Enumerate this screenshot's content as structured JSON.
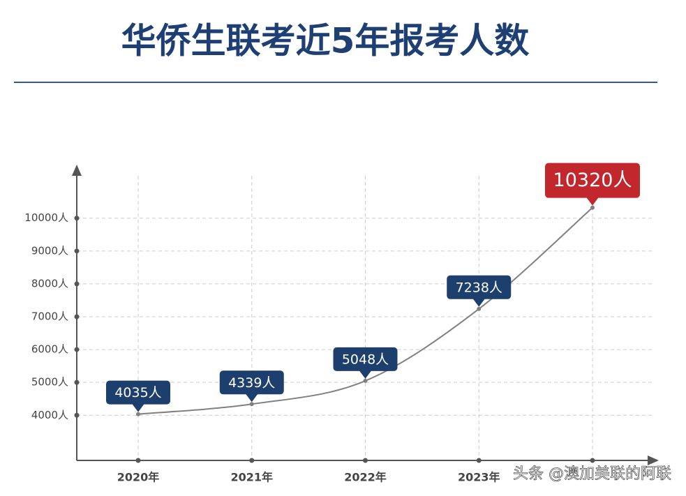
{
  "chart_data": {
    "type": "line",
    "title": "华侨生联考近5年报考人数",
    "categories": [
      "2020年",
      "2021年",
      "2022年",
      "2023年",
      null
    ],
    "series": [
      {
        "color": "#808080",
        "values": [
          4035,
          4339,
          5048,
          7238,
          10320
        ],
        "value_labels": [
          "4035人",
          "4339人",
          "5048人",
          "7238人",
          "10320人"
        ]
      }
    ],
    "ylim": [
      2625,
      11375
    ],
    "yticks": [
      {
        "value": 4000,
        "label": "4000人"
      },
      {
        "value": 5000,
        "label": "5000人"
      },
      {
        "value": 6000,
        "label": "6000人"
      },
      {
        "value": 7000,
        "label": "7000人"
      },
      {
        "value": 8000,
        "label": "8000人"
      },
      {
        "value": 9000,
        "label": "9000人"
      },
      {
        "value": 10000,
        "label": "10000人"
      }
    ],
    "grid": true,
    "label_color": "#1d3f6e",
    "highlight_color": "#c1272d",
    "watermark": "头条 @澳加美联的阿联"
  }
}
